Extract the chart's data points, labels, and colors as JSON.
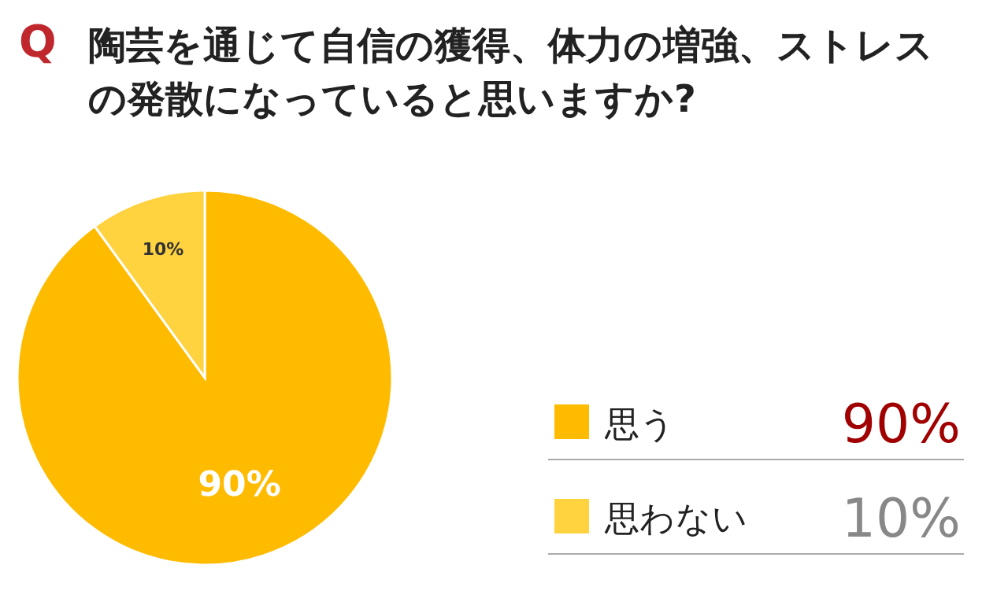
{
  "chart_data": {
    "type": "pie",
    "title": "陶芸を通じて自信の獲得、体力の増強、ストレスの発散になっていると思いますか?",
    "annotations": [
      "Q"
    ],
    "categories": [
      "思う",
      "思わない"
    ],
    "values": [
      90,
      10
    ],
    "value_labels": [
      "90%",
      "10%"
    ],
    "colors": [
      "#ffbb00",
      "#ffd23f"
    ],
    "data_labels": true,
    "legend": "right"
  }
}
